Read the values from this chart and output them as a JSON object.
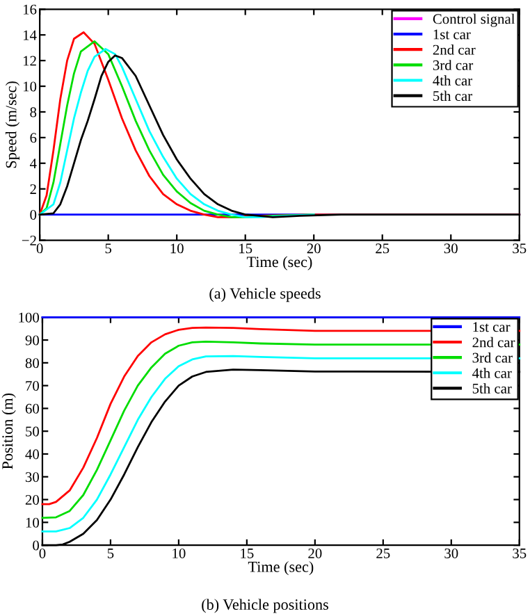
{
  "chart_data": [
    {
      "type": "line",
      "xlabel": "Time (sec)",
      "ylabel": "Speed (m/sec)",
      "annotations": [
        "(a) Vehicle speeds"
      ],
      "xlim": [
        0,
        35
      ],
      "ylim": [
        -2,
        16
      ],
      "xticks": [
        0,
        5,
        10,
        15,
        20,
        25,
        30,
        35
      ],
      "yticks": [
        {
          "value": -2,
          "label": "−2"
        },
        0,
        2,
        4,
        6,
        8,
        10,
        12,
        14,
        16
      ],
      "legend": "top right",
      "grid": false,
      "line_style": "solid",
      "marker": "none",
      "series": [
        {
          "name": "Control signal",
          "color": "#ff00ff"
        },
        {
          "name": "1st car",
          "color": "#0000ff",
          "x": [
            0,
            35
          ],
          "values": [
            0,
            0
          ]
        },
        {
          "name": "2nd car",
          "color": "#ff0000",
          "x": [
            0,
            0.5,
            1,
            1.5,
            2,
            2.5,
            3.2,
            4,
            5,
            6,
            7,
            8,
            9,
            10,
            11,
            12,
            13,
            14,
            16,
            20,
            35
          ],
          "values": [
            0,
            1.5,
            5,
            9,
            12,
            13.7,
            14.2,
            13.3,
            10.5,
            7.5,
            5,
            3,
            1.6,
            0.8,
            0.3,
            0,
            -0.2,
            -0.2,
            -0.1,
            0,
            0
          ]
        },
        {
          "name": "3rd car",
          "color": "#00dd00",
          "x": [
            0,
            0.5,
            1,
            1.5,
            2,
            2.5,
            3,
            4,
            5,
            6,
            7,
            8,
            9,
            10,
            11,
            12,
            13,
            14,
            15,
            17,
            20
          ],
          "values": [
            0,
            0.5,
            2.5,
            5.5,
            8.5,
            11,
            12.7,
            13.5,
            12.5,
            10,
            7.3,
            5,
            3.1,
            1.8,
            0.9,
            0.3,
            0,
            -0.2,
            -0.2,
            -0.1,
            0
          ]
        },
        {
          "name": "4th car",
          "color": "#00ffff",
          "x": [
            0,
            1,
            1.5,
            2,
            2.5,
            3,
            3.5,
            4,
            4.8,
            5.5,
            6,
            7,
            8,
            9,
            10,
            11,
            12,
            13,
            14,
            15,
            16,
            18,
            20
          ],
          "values": [
            0,
            0.8,
            2.5,
            5,
            7.5,
            9.5,
            11.2,
            12.3,
            12.9,
            12.5,
            11.5,
            9,
            6.5,
            4.5,
            2.8,
            1.6,
            0.8,
            0.3,
            0,
            -0.2,
            -0.2,
            -0.1,
            0
          ]
        },
        {
          "name": "5th car",
          "color": "#000000",
          "x": [
            0,
            1,
            1.5,
            2,
            2.5,
            3,
            3.5,
            4,
            4.5,
            5,
            5.5,
            6,
            7,
            8,
            9,
            10,
            11,
            12,
            13,
            14,
            15,
            16,
            17,
            19,
            22,
            35
          ],
          "values": [
            0,
            0.1,
            0.8,
            2.2,
            4,
            5.8,
            7.3,
            9,
            10.8,
            11.9,
            12.4,
            12.2,
            10.8,
            8.5,
            6.2,
            4.3,
            2.8,
            1.6,
            0.8,
            0.3,
            0,
            -0.1,
            -0.2,
            -0.1,
            0,
            0
          ]
        }
      ]
    },
    {
      "type": "line",
      "xlabel": "Time (sec)",
      "ylabel": "Position (m)",
      "annotations": [
        "(b) Vehicle positions"
      ],
      "xlim": [
        0,
        35
      ],
      "ylim": [
        0,
        100
      ],
      "xticks": [
        0,
        5,
        10,
        15,
        20,
        25,
        30,
        35
      ],
      "yticks": [
        0,
        10,
        20,
        30,
        40,
        50,
        60,
        70,
        80,
        90,
        100
      ],
      "legend": "top right",
      "grid": false,
      "line_style": "solid",
      "marker": "none",
      "series": [
        {
          "name": "1st car",
          "color": "#0000ff",
          "x": [
            0,
            35
          ],
          "values": [
            100,
            100
          ]
        },
        {
          "name": "2nd car",
          "color": "#ff0000",
          "x": [
            0,
            0.5,
            1,
            2,
            3,
            4,
            5,
            6,
            7,
            8,
            9,
            10,
            11,
            12,
            14,
            16,
            20,
            35
          ],
          "values": [
            18,
            18,
            19,
            24,
            34,
            47,
            62,
            74,
            83,
            89,
            92.5,
            94.5,
            95.3,
            95.5,
            95.3,
            94.8,
            94,
            94
          ]
        },
        {
          "name": "3rd car",
          "color": "#00dd00",
          "x": [
            0,
            1,
            2,
            3,
            4,
            5,
            6,
            7,
            8,
            9,
            10,
            11,
            12,
            14,
            16,
            20,
            35
          ],
          "values": [
            12,
            12.2,
            15,
            22,
            33,
            46,
            59,
            70,
            78,
            84,
            87.5,
            89,
            89.3,
            89,
            88.5,
            88,
            88
          ]
        },
        {
          "name": "4th car",
          "color": "#00ffff",
          "x": [
            0,
            1,
            2,
            3,
            4,
            5,
            6,
            7,
            8,
            9,
            10,
            11,
            12,
            14,
            16,
            20,
            35
          ],
          "values": [
            6,
            6,
            7.5,
            12,
            20,
            31,
            43,
            55,
            65,
            73,
            78.5,
            81.5,
            82.8,
            83,
            82.6,
            82,
            82
          ]
        },
        {
          "name": "5th car",
          "color": "#000000",
          "x": [
            0,
            1,
            1.5,
            2,
            3,
            4,
            5,
            6,
            7,
            8,
            9,
            10,
            11,
            12,
            14,
            16,
            20,
            35
          ],
          "values": [
            0,
            0,
            0.3,
            1.5,
            5,
            11,
            20,
            31,
            43,
            54,
            63,
            70,
            74,
            76,
            77,
            76.8,
            76.2,
            76
          ]
        }
      ]
    }
  ]
}
